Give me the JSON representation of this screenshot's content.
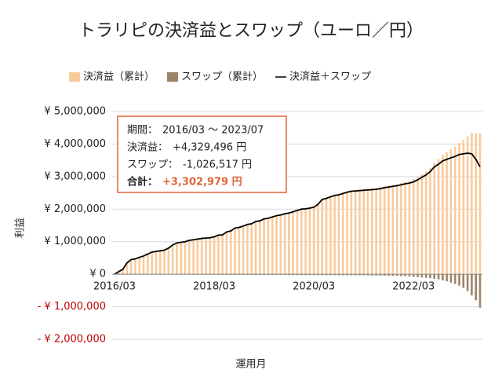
{
  "chart_data": {
    "type": "bar_line",
    "title": "トラリピの決済益とスワップ（ユーロ／円）",
    "x_label": "運用月",
    "y_label": "利益",
    "categories": [
      "2016/03",
      null,
      null,
      null,
      null,
      null,
      null,
      null,
      null,
      null,
      null,
      null,
      null,
      null,
      null,
      null,
      null,
      null,
      null,
      null,
      null,
      null,
      null,
      null,
      "2018/03",
      null,
      null,
      null,
      null,
      null,
      null,
      null,
      null,
      null,
      null,
      null,
      null,
      null,
      null,
      null,
      null,
      null,
      null,
      null,
      null,
      null,
      null,
      null,
      "2020/03",
      null,
      null,
      null,
      null,
      null,
      null,
      null,
      null,
      null,
      null,
      null,
      null,
      null,
      null,
      null,
      null,
      null,
      null,
      null,
      null,
      null,
      null,
      null,
      "2022/03",
      null,
      null,
      null,
      null,
      null,
      null,
      null,
      null,
      null,
      null,
      null,
      null,
      null,
      null,
      null,
      null
    ],
    "series": [
      {
        "name": "決済益（累計）",
        "kind": "bar",
        "color": "#f9cb9c",
        "values": [
          5000,
          85000,
          156000,
          356000,
          457000,
          477000,
          528000,
          568000,
          629000,
          689000,
          710000,
          730000,
          751000,
          811000,
          912000,
          972000,
          993000,
          1013000,
          1054000,
          1074000,
          1095000,
          1115000,
          1126000,
          1136000,
          1167000,
          1217000,
          1228000,
          1318000,
          1349000,
          1439000,
          1460000,
          1500000,
          1551000,
          1571000,
          1642000,
          1662000,
          1723000,
          1743000,
          1784000,
          1824000,
          1845000,
          1885000,
          1906000,
          1946000,
          1987000,
          2027000,
          2038000,
          2058000,
          2089000,
          2179000,
          2330000,
          2360000,
          2411000,
          2451000,
          2472000,
          2512000,
          2553000,
          2583000,
          2594000,
          2604000,
          2615000,
          2627000,
          2639000,
          2651000,
          2673000,
          2705000,
          2728000,
          2751000,
          2774000,
          2807000,
          2840000,
          2870000,
          2920000,
          2990000,
          3080000,
          3160000,
          3270000,
          3440000,
          3540000,
          3670000,
          3750000,
          3840000,
          3920000,
          4030000,
          4120000,
          4240000,
          4350000,
          4330000,
          4329496
        ]
      },
      {
        "name": "スワップ（累計）",
        "kind": "bar",
        "color": "#9c8468",
        "values": [
          -5000,
          -5000,
          -6000,
          -6000,
          -7000,
          -7000,
          -8000,
          -8000,
          -9000,
          -9000,
          -10000,
          -10000,
          -11000,
          -11000,
          -12000,
          -12000,
          -13000,
          -13000,
          -14000,
          -14000,
          -15000,
          -15000,
          -16000,
          -16000,
          -17000,
          -17000,
          -18000,
          -18000,
          -19000,
          -19000,
          -20000,
          -20000,
          -21000,
          -21000,
          -22000,
          -22000,
          -23000,
          -23000,
          -24000,
          -24000,
          -25000,
          -25000,
          -26000,
          -26000,
          -27000,
          -27000,
          -28000,
          -28000,
          -29000,
          -29000,
          -30000,
          -30000,
          -31000,
          -31000,
          -32000,
          -32000,
          -33000,
          -33000,
          -34000,
          -34000,
          -35000,
          -37000,
          -39000,
          -41000,
          -43000,
          -45000,
          -48000,
          -51000,
          -54000,
          -57000,
          -60000,
          -70000,
          -80000,
          -90000,
          -100000,
          -110000,
          -120000,
          -140000,
          -160000,
          -190000,
          -220000,
          -260000,
          -300000,
          -350000,
          -420000,
          -520000,
          -650000,
          -800000,
          -1026517
        ]
      },
      {
        "name": "決済益＋スワップ",
        "kind": "line",
        "color": "#000000",
        "values": [
          0,
          80000,
          150000,
          350000,
          450000,
          470000,
          520000,
          560000,
          620000,
          680000,
          700000,
          720000,
          740000,
          800000,
          900000,
          960000,
          980000,
          1000000,
          1040000,
          1060000,
          1080000,
          1100000,
          1110000,
          1120000,
          1150000,
          1200000,
          1210000,
          1300000,
          1330000,
          1420000,
          1440000,
          1480000,
          1530000,
          1550000,
          1620000,
          1640000,
          1700000,
          1720000,
          1760000,
          1800000,
          1820000,
          1860000,
          1880000,
          1920000,
          1960000,
          2000000,
          2010000,
          2030000,
          2060000,
          2150000,
          2300000,
          2330000,
          2380000,
          2420000,
          2440000,
          2480000,
          2520000,
          2550000,
          2560000,
          2570000,
          2580000,
          2590000,
          2600000,
          2610000,
          2630000,
          2660000,
          2680000,
          2700000,
          2720000,
          2750000,
          2780000,
          2800000,
          2840000,
          2900000,
          2980000,
          3050000,
          3150000,
          3300000,
          3380000,
          3480000,
          3530000,
          3580000,
          3620000,
          3680000,
          3700000,
          3720000,
          3700000,
          3530000,
          3302979
        ]
      }
    ],
    "ylim": [
      -2000000,
      5000000
    ],
    "yticks": [
      {
        "value": -2000000,
        "label": "- ¥ 2,000,000"
      },
      {
        "value": -1000000,
        "label": "- ¥ 1,000,000"
      },
      {
        "value": 0,
        "label": "¥ 0"
      },
      {
        "value": 1000000,
        "label": "¥ 1,000,000"
      },
      {
        "value": 2000000,
        "label": "¥ 2,000,000"
      },
      {
        "value": 3000000,
        "label": "¥ 3,000,000"
      },
      {
        "value": 4000000,
        "label": "¥ 4,000,000"
      },
      {
        "value": 5000000,
        "label": "¥ 5,000,000"
      }
    ],
    "negative_tick_color": "#c00000",
    "grid": true,
    "legend": "top",
    "annotation": {
      "border_color": "#e0643a",
      "lines": [
        {
          "label": "期間：",
          "text": "2016/03 ～ 2023/07"
        },
        {
          "label": "決済益：",
          "text": "+4,329,496 円"
        },
        {
          "label": "スワップ：",
          "text": "-1,026,517 円"
        },
        {
          "label": "合計：",
          "text": "+3,302,979 円",
          "color": "#e0643a"
        }
      ]
    }
  }
}
